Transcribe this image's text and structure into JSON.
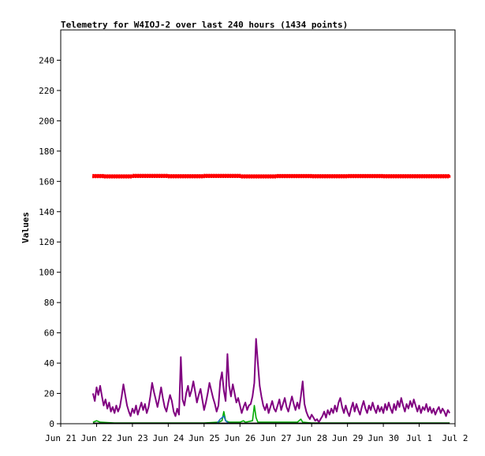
{
  "chart_data": {
    "type": "line",
    "title": "Telemetry for W4IOJ-2 over last 240 hours (1434 points)",
    "ylabel": "Values",
    "xlabel": "",
    "ylim": [
      0,
      260
    ],
    "yticks": [
      0,
      20,
      40,
      60,
      80,
      100,
      120,
      140,
      160,
      180,
      200,
      220,
      240
    ],
    "xlim": [
      "Jun 21",
      "Jul 2"
    ],
    "x_categories": [
      "Jun 21",
      "Jun 22",
      "Jun 23",
      "Jun 24",
      "Jun 25",
      "Jun 26",
      "Jun 27",
      "Jun 28",
      "Jun 29",
      "Jun 30",
      "Jul 1",
      "Jul 2"
    ],
    "xtick_labels": [
      "Jun 21",
      "Jun 22",
      "Jun 23",
      "Jun 24",
      "Jun 25",
      "Jun 26",
      "Jun 27",
      "Jun 28",
      "Jun 29",
      "Jun 30",
      "Jul 1",
      "Jul 2"
    ],
    "grid": false,
    "legend": "none",
    "series": [
      {
        "color": "#ff0000",
        "style": "dense-points",
        "points": [
          [
            0.9,
            163.5
          ],
          [
            1.5,
            163.3
          ],
          [
            2.5,
            163.6
          ],
          [
            3.5,
            163.4
          ],
          [
            4.5,
            163.6
          ],
          [
            5.5,
            163.3
          ],
          [
            6.5,
            163.5
          ],
          [
            7.5,
            163.4
          ],
          [
            8.5,
            163.5
          ],
          [
            9.5,
            163.4
          ],
          [
            10.85,
            163.4
          ]
        ]
      },
      {
        "color": "#800080",
        "style": "line",
        "points": [
          [
            0.9,
            20
          ],
          [
            0.95,
            15
          ],
          [
            1.0,
            24
          ],
          [
            1.05,
            19
          ],
          [
            1.1,
            25
          ],
          [
            1.15,
            18
          ],
          [
            1.2,
            12
          ],
          [
            1.25,
            16
          ],
          [
            1.3,
            10
          ],
          [
            1.35,
            14
          ],
          [
            1.4,
            8
          ],
          [
            1.45,
            11
          ],
          [
            1.5,
            7
          ],
          [
            1.55,
            12
          ],
          [
            1.6,
            8
          ],
          [
            1.65,
            11
          ],
          [
            1.7,
            18
          ],
          [
            1.75,
            26
          ],
          [
            1.8,
            19
          ],
          [
            1.85,
            12
          ],
          [
            1.9,
            8
          ],
          [
            1.95,
            5
          ],
          [
            2.0,
            10
          ],
          [
            2.05,
            7
          ],
          [
            2.1,
            12
          ],
          [
            2.15,
            6
          ],
          [
            2.2,
            10
          ],
          [
            2.25,
            14
          ],
          [
            2.3,
            9
          ],
          [
            2.35,
            13
          ],
          [
            2.4,
            7
          ],
          [
            2.45,
            11
          ],
          [
            2.5,
            18
          ],
          [
            2.55,
            27
          ],
          [
            2.6,
            21
          ],
          [
            2.65,
            16
          ],
          [
            2.7,
            11
          ],
          [
            2.75,
            17
          ],
          [
            2.8,
            24
          ],
          [
            2.85,
            17
          ],
          [
            2.9,
            11
          ],
          [
            2.95,
            8
          ],
          [
            3.0,
            14
          ],
          [
            3.05,
            19
          ],
          [
            3.1,
            15
          ],
          [
            3.15,
            8
          ],
          [
            3.2,
            5
          ],
          [
            3.25,
            10
          ],
          [
            3.3,
            6
          ],
          [
            3.35,
            44
          ],
          [
            3.4,
            16
          ],
          [
            3.45,
            12
          ],
          [
            3.5,
            20
          ],
          [
            3.55,
            25
          ],
          [
            3.6,
            18
          ],
          [
            3.65,
            22
          ],
          [
            3.7,
            28
          ],
          [
            3.75,
            21
          ],
          [
            3.8,
            14
          ],
          [
            3.85,
            19
          ],
          [
            3.9,
            23
          ],
          [
            3.95,
            16
          ],
          [
            4.0,
            9
          ],
          [
            4.05,
            14
          ],
          [
            4.1,
            20
          ],
          [
            4.15,
            27
          ],
          [
            4.2,
            22
          ],
          [
            4.25,
            17
          ],
          [
            4.3,
            13
          ],
          [
            4.35,
            8
          ],
          [
            4.4,
            12
          ],
          [
            4.45,
            28
          ],
          [
            4.5,
            34
          ],
          [
            4.55,
            22
          ],
          [
            4.6,
            15
          ],
          [
            4.65,
            46
          ],
          [
            4.7,
            25
          ],
          [
            4.75,
            18
          ],
          [
            4.8,
            26
          ],
          [
            4.85,
            20
          ],
          [
            4.9,
            14
          ],
          [
            4.95,
            17
          ],
          [
            5.0,
            12
          ],
          [
            5.05,
            7
          ],
          [
            5.1,
            11
          ],
          [
            5.15,
            14
          ],
          [
            5.2,
            9
          ],
          [
            5.25,
            12
          ],
          [
            5.3,
            13
          ],
          [
            5.35,
            18
          ],
          [
            5.4,
            27
          ],
          [
            5.45,
            56
          ],
          [
            5.5,
            40
          ],
          [
            5.55,
            25
          ],
          [
            5.6,
            18
          ],
          [
            5.65,
            12
          ],
          [
            5.7,
            9
          ],
          [
            5.75,
            13
          ],
          [
            5.8,
            7
          ],
          [
            5.85,
            11
          ],
          [
            5.9,
            15
          ],
          [
            5.95,
            10
          ],
          [
            6.0,
            8
          ],
          [
            6.05,
            12
          ],
          [
            6.1,
            16
          ],
          [
            6.15,
            9
          ],
          [
            6.2,
            13
          ],
          [
            6.25,
            17
          ],
          [
            6.3,
            11
          ],
          [
            6.35,
            8
          ],
          [
            6.4,
            13
          ],
          [
            6.45,
            18
          ],
          [
            6.5,
            13
          ],
          [
            6.55,
            9
          ],
          [
            6.6,
            14
          ],
          [
            6.65,
            10
          ],
          [
            6.7,
            18
          ],
          [
            6.75,
            28
          ],
          [
            6.8,
            13
          ],
          [
            6.85,
            8
          ],
          [
            6.9,
            5
          ],
          [
            6.95,
            3
          ],
          [
            7.0,
            6
          ],
          [
            7.05,
            4
          ],
          [
            7.1,
            2
          ],
          [
            7.15,
            3
          ],
          [
            7.2,
            1
          ],
          [
            7.25,
            3
          ],
          [
            7.3,
            5
          ],
          [
            7.35,
            8
          ],
          [
            7.4,
            4
          ],
          [
            7.45,
            9
          ],
          [
            7.5,
            6
          ],
          [
            7.55,
            10
          ],
          [
            7.6,
            7
          ],
          [
            7.65,
            12
          ],
          [
            7.7,
            8
          ],
          [
            7.75,
            14
          ],
          [
            7.8,
            17
          ],
          [
            7.85,
            11
          ],
          [
            7.9,
            7
          ],
          [
            7.95,
            12
          ],
          [
            8.0,
            8
          ],
          [
            8.05,
            5
          ],
          [
            8.1,
            10
          ],
          [
            8.15,
            14
          ],
          [
            8.2,
            8
          ],
          [
            8.25,
            13
          ],
          [
            8.3,
            9
          ],
          [
            8.35,
            6
          ],
          [
            8.4,
            11
          ],
          [
            8.45,
            15
          ],
          [
            8.5,
            10
          ],
          [
            8.55,
            7
          ],
          [
            8.6,
            12
          ],
          [
            8.65,
            9
          ],
          [
            8.7,
            14
          ],
          [
            8.75,
            10
          ],
          [
            8.8,
            7
          ],
          [
            8.85,
            12
          ],
          [
            8.9,
            8
          ],
          [
            8.95,
            11
          ],
          [
            9.0,
            7
          ],
          [
            9.05,
            13
          ],
          [
            9.1,
            9
          ],
          [
            9.15,
            14
          ],
          [
            9.2,
            10
          ],
          [
            9.25,
            7
          ],
          [
            9.3,
            13
          ],
          [
            9.35,
            9
          ],
          [
            9.4,
            15
          ],
          [
            9.45,
            11
          ],
          [
            9.5,
            17
          ],
          [
            9.55,
            12
          ],
          [
            9.6,
            8
          ],
          [
            9.65,
            13
          ],
          [
            9.7,
            10
          ],
          [
            9.75,
            15
          ],
          [
            9.8,
            11
          ],
          [
            9.85,
            16
          ],
          [
            9.9,
            12
          ],
          [
            9.95,
            8
          ],
          [
            10.0,
            12
          ],
          [
            10.05,
            7
          ],
          [
            10.1,
            11
          ],
          [
            10.15,
            9
          ],
          [
            10.2,
            13
          ],
          [
            10.25,
            8
          ],
          [
            10.3,
            11
          ],
          [
            10.35,
            7
          ],
          [
            10.4,
            10
          ],
          [
            10.45,
            6
          ],
          [
            10.5,
            9
          ],
          [
            10.55,
            11
          ],
          [
            10.6,
            7
          ],
          [
            10.65,
            10
          ],
          [
            10.7,
            8
          ],
          [
            10.75,
            5
          ],
          [
            10.8,
            9
          ],
          [
            10.85,
            7
          ]
        ]
      },
      {
        "color": "#00aa00",
        "style": "line",
        "points": [
          [
            0.9,
            1
          ],
          [
            1.0,
            2
          ],
          [
            1.1,
            1
          ],
          [
            1.5,
            0.5
          ],
          [
            2.0,
            0.5
          ],
          [
            2.5,
            0.5
          ],
          [
            3.0,
            0.5
          ],
          [
            3.5,
            0.5
          ],
          [
            4.0,
            0.5
          ],
          [
            4.4,
            1
          ],
          [
            4.5,
            2
          ],
          [
            4.55,
            8
          ],
          [
            4.6,
            2
          ],
          [
            4.7,
            1
          ],
          [
            5.0,
            1
          ],
          [
            5.1,
            2
          ],
          [
            5.15,
            1
          ],
          [
            5.35,
            2
          ],
          [
            5.4,
            12
          ],
          [
            5.45,
            4
          ],
          [
            5.5,
            1
          ],
          [
            5.6,
            1
          ],
          [
            6.0,
            1
          ],
          [
            6.5,
            1
          ],
          [
            6.6,
            1
          ],
          [
            6.7,
            3
          ],
          [
            6.75,
            1
          ],
          [
            7.0,
            0.5
          ],
          [
            8.0,
            0.5
          ],
          [
            9.0,
            0.5
          ],
          [
            10.0,
            0.5
          ],
          [
            10.85,
            0.5
          ]
        ]
      },
      {
        "color": "#1f6fbf",
        "style": "line",
        "points": [
          [
            4.35,
            0
          ],
          [
            4.45,
            3
          ],
          [
            4.55,
            5
          ],
          [
            4.6,
            2
          ],
          [
            4.65,
            1
          ],
          [
            4.7,
            0
          ]
        ]
      },
      {
        "color": "#000000",
        "style": "line",
        "points": [
          [
            0.9,
            0.3
          ],
          [
            10.85,
            0.3
          ]
        ]
      }
    ]
  }
}
